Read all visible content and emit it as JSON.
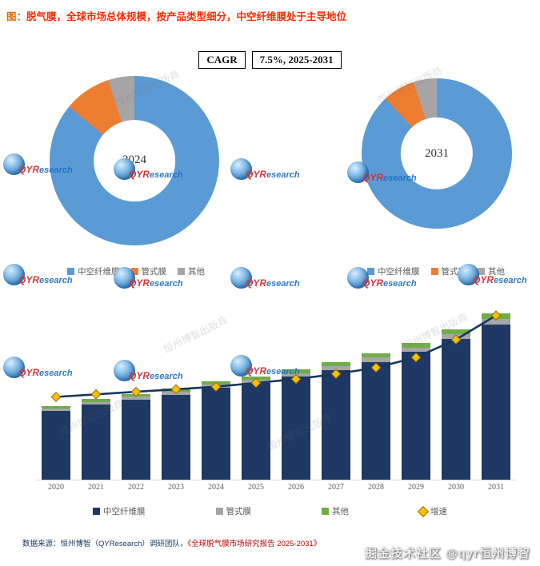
{
  "header": {
    "figure_label": "图：",
    "title": "脱气膜，全球市场总体规模，按产品类型细分，中空纤维膜处于主导地位"
  },
  "cagr": {
    "label": "CAGR",
    "value": "7.5%, 2025-2031"
  },
  "footer": {
    "source_prefix": "数据来源：恒州博智（QYResearch）调研团队，",
    "source_report": "《全球脱气膜市场研究报告 2025-2031》",
    "bottom_watermark": "掘金技术社区 @qyr恒州博智"
  },
  "watermark": {
    "brand_left": "QYR",
    "brand_right": "esearch",
    "diagonal_text": "恒州博智出版商"
  },
  "colors": {
    "hollow_fiber": "#1F3864",
    "tubular": "#A6A6A6",
    "other": "#70AD47",
    "pie_blue": "#5B9BD5",
    "pie_orange": "#ED7D31",
    "pie_gray": "#A6A6A6",
    "growth_line": "#17375E",
    "growth_marker": "#FFC000"
  },
  "chart_data": [
    {
      "type": "pie",
      "donut": true,
      "title": "2024",
      "categories": [
        "中空纤维膜",
        "管式膜",
        "其他"
      ],
      "values": [
        86,
        9,
        5
      ],
      "colors": [
        "#5B9BD5",
        "#ED7D31",
        "#A6A6A6"
      ],
      "legend_position": "bottom"
    },
    {
      "type": "pie",
      "donut": true,
      "title": "2031",
      "categories": [
        "中空纤维膜",
        "管式膜",
        "其他"
      ],
      "values": [
        88,
        7,
        5
      ],
      "colors": [
        "#5B9BD5",
        "#ED7D31",
        "#A6A6A6"
      ],
      "legend_position": "bottom"
    },
    {
      "type": "bar",
      "stacked": true,
      "title": "",
      "xlabel": "",
      "ylabel": "",
      "categories": [
        "2020",
        "2021",
        "2022",
        "2023",
        "2024",
        "2025",
        "2026",
        "2027",
        "2028",
        "2029",
        "2030",
        "2031"
      ],
      "series": [
        {
          "name": "中空纤维膜",
          "type": "bar",
          "color": "#1F3864",
          "values": [
            42,
            46,
            49,
            52,
            56,
            59,
            63,
            67,
            72,
            78,
            86,
            95
          ]
        },
        {
          "name": "管式膜",
          "type": "bar",
          "color": "#A6A6A6",
          "values": [
            1.5,
            1.6,
            1.7,
            1.8,
            2.0,
            2.1,
            2.2,
            2.4,
            2.6,
            2.8,
            3.0,
            3.3
          ]
        },
        {
          "name": "其他",
          "type": "bar",
          "color": "#70AD47",
          "values": [
            1.5,
            1.6,
            1.7,
            1.8,
            2.0,
            2.1,
            2.2,
            2.4,
            2.6,
            2.8,
            3.0,
            3.3
          ]
        },
        {
          "name": "增速",
          "type": "line",
          "color": "#17375E",
          "marker": "#FFC000",
          "values": [
            6.5,
            6.7,
            6.9,
            7.1,
            7.3,
            7.6,
            7.9,
            8.3,
            8.8,
            9.6,
            11.0,
            12.9
          ]
        }
      ],
      "ylim": [
        0,
        105
      ],
      "y2lim": [
        0,
        13.5
      ],
      "grid": false,
      "legend_position": "bottom"
    }
  ]
}
